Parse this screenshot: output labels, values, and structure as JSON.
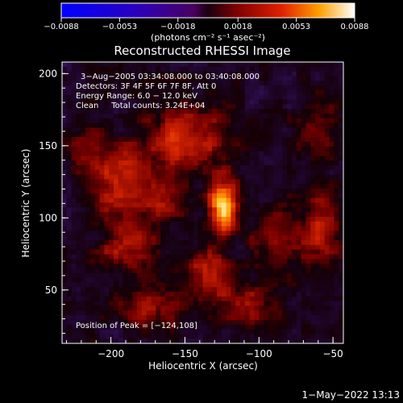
{
  "chart_data": {
    "type": "heatmap",
    "title": "Reconstructed RHESSI Image",
    "xlabel": "Heliocentric X (arcsec)",
    "ylabel": "Heliocentric Y (arcsec)",
    "xlim": [
      -233,
      -43
    ],
    "ylim": [
      13,
      208
    ],
    "x_ticks": [
      -200,
      -150,
      -100,
      -50
    ],
    "y_ticks": [
      50,
      100,
      150,
      200
    ],
    "x_tick_labels": [
      "−200",
      "−150",
      "−100",
      "−50"
    ],
    "y_tick_labels": [
      "50",
      "100",
      "150",
      "200"
    ],
    "colorbar": {
      "range": [
        -0.0088,
        0.0088
      ],
      "ticks": [
        -0.0088,
        -0.0053,
        -0.0018,
        0.0018,
        0.0053,
        0.0088
      ],
      "tick_labels": [
        "−0.0088",
        "−0.0053",
        "−0.0018",
        "0.0018",
        "0.0053",
        "0.0088"
      ],
      "unit": "(photons cm⁻² s⁻¹ asec⁻²)"
    },
    "annotations": [
      "3−Aug−2005 03:34:08.000 to 03:40:08.000",
      "Detectors: 3F 4F 5F 6F 7F 8F, Att 0",
      "Energy Range: 6.0 − 12.0 keV",
      "Clean     Total counts: 3.24E+04",
      "Position of Peak = [−124,108]"
    ],
    "peak": {
      "x": -124,
      "y": 108,
      "value": 0.0088
    },
    "sources": [
      {
        "x": -124,
        "y": 108,
        "amplitude": 1.0,
        "sx": 7,
        "sy": 14
      },
      {
        "x": -150,
        "y": 155,
        "amplitude": 0.55,
        "sx": 20,
        "sy": 16
      },
      {
        "x": -167,
        "y": 112,
        "amplitude": 0.5,
        "sx": 12,
        "sy": 11
      },
      {
        "x": -195,
        "y": 125,
        "amplitude": 0.45,
        "sx": 14,
        "sy": 18
      },
      {
        "x": -190,
        "y": 80,
        "amplitude": 0.4,
        "sx": 14,
        "sy": 12
      },
      {
        "x": -175,
        "y": 40,
        "amplitude": 0.45,
        "sx": 16,
        "sy": 10
      },
      {
        "x": -135,
        "y": 60,
        "amplitude": 0.45,
        "sx": 12,
        "sy": 15
      },
      {
        "x": -105,
        "y": 40,
        "amplitude": 0.4,
        "sx": 14,
        "sy": 10
      },
      {
        "x": -90,
        "y": 85,
        "amplitude": 0.35,
        "sx": 10,
        "sy": 16
      },
      {
        "x": -60,
        "y": 90,
        "amplitude": 0.45,
        "sx": 10,
        "sy": 20
      },
      {
        "x": -60,
        "y": 160,
        "amplitude": 0.35,
        "sx": 10,
        "sy": 12
      },
      {
        "x": -215,
        "y": 150,
        "amplitude": 0.25,
        "sx": 10,
        "sy": 14
      }
    ]
  },
  "footer": {
    "timestamp": "1−May−2022 13:13"
  },
  "colors": {
    "background": "#000000",
    "foreground": "#ffffff"
  }
}
